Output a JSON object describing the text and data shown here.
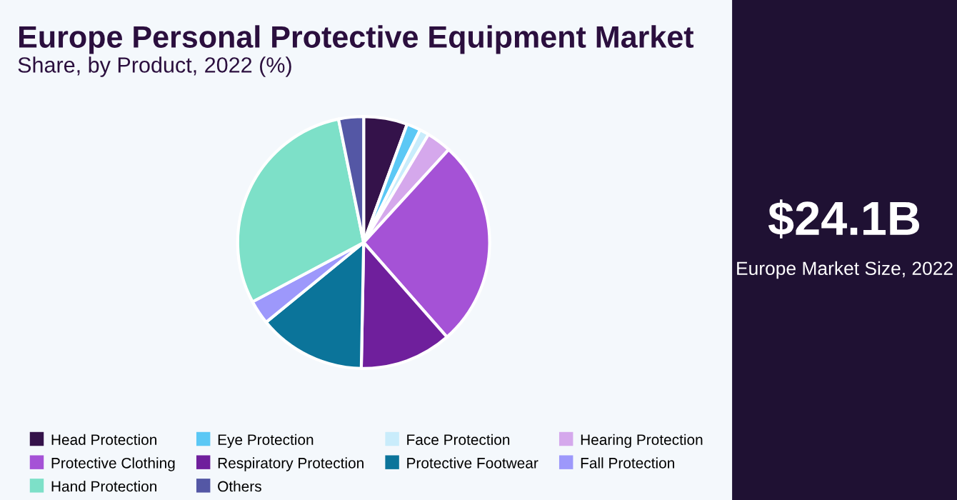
{
  "chart_data": [
    {
      "type": "pie",
      "title": "Europe Personal Protective Equipment Market",
      "subtitle": "Share, by Product, 2022 (%)",
      "categories": [
        "Head Protection",
        "Eye Protection",
        "Face Protection",
        "Hearing Protection",
        "Protective Clothing",
        "Respiratory Protection",
        "Protective Footwear",
        "Fall Protection",
        "Hand Protection",
        "Others"
      ],
      "values": [
        5.6,
        1.8,
        1.2,
        3.2,
        26.7,
        11.8,
        13.8,
        3.1,
        29.6,
        3.2
      ],
      "colors": [
        "#34124a",
        "#5bc8f5",
        "#c9ecfb",
        "#d5a8ec",
        "#a552d6",
        "#6f1f9c",
        "#0b749a",
        "#9d98fb",
        "#7de0c8",
        "#5457a5"
      ],
      "legend": "bottom"
    },
    {
      "type": "other",
      "annotations": [
        "$24.1B",
        "Europe Market Size, 2022"
      ]
    }
  ]
}
